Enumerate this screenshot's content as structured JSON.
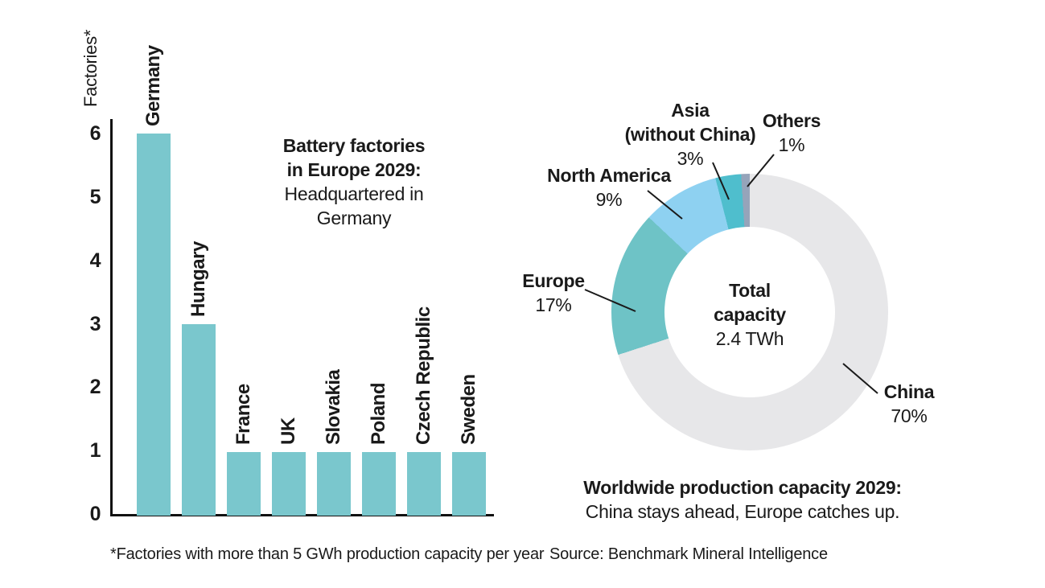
{
  "texts": {
    "bar_title_bold_1": "Battery factories",
    "bar_title_bold_2": "in Europe 2029:",
    "bar_title_reg_1": "Headquartered in",
    "bar_title_reg_2": "Germany",
    "y_axis_label": "Factories*",
    "donut_center_bold_1": "Total",
    "donut_center_bold_2": "capacity",
    "donut_center_value": "2.4 TWh",
    "donut_caption_bold": "Worldwide production capacity 2029:",
    "donut_caption_reg": "China stays ahead, Europe catches up.",
    "footnote": "*Factories with more than 5 GWh production capacity per year",
    "source": "Source: Benchmark Mineral Intelligence"
  },
  "donut_callouts": [
    {
      "lines": [
        "Asia",
        "(without China)"
      ],
      "pct": "3%"
    },
    {
      "lines": [
        "Others"
      ],
      "pct": "1%"
    },
    {
      "lines": [
        "North America"
      ],
      "pct": "9%"
    },
    {
      "lines": [
        "Europe"
      ],
      "pct": "17%"
    },
    {
      "lines": [
        "China"
      ],
      "pct": "70%"
    }
  ],
  "chart_data": [
    {
      "type": "bar",
      "title": "Battery factories in Europe 2029: Headquartered in Germany",
      "ylabel": "Factories*",
      "categories": [
        "Germany",
        "Hungary",
        "France",
        "UK",
        "Slovakia",
        "Poland",
        "Czech Republic",
        "Sweden"
      ],
      "values": [
        6,
        3,
        1,
        1,
        1,
        1,
        1,
        1
      ],
      "ylim": [
        0,
        6
      ],
      "yticks": [
        0,
        1,
        2,
        3,
        4,
        5,
        6
      ],
      "ytick_labels_top_to_bottom": [
        "6",
        "5",
        "4",
        "3",
        "2",
        "1",
        "0"
      ],
      "bar_color": "#7ac7cd",
      "grid": false,
      "footnote": "*Factories with more than 5 GWh production capacity per year"
    },
    {
      "type": "pie",
      "subtype": "donut",
      "title": "Worldwide production capacity 2029: China stays ahead, Europe catches up.",
      "center_text": "Total capacity 2.4 TWh",
      "total_capacity": "2.4 TWh",
      "start_angle_deg": 0,
      "direction": "clockwise",
      "segments": [
        {
          "label": "China",
          "pct": 70,
          "color": "#e7e7e9"
        },
        {
          "label": "Europe",
          "pct": 17,
          "color": "#6ec3c6"
        },
        {
          "label": "North America",
          "pct": 9,
          "color": "#8ed1f1"
        },
        {
          "label": "Asia (without China)",
          "pct": 3,
          "color": "#4fbecd"
        },
        {
          "label": "Others",
          "pct": 1,
          "color": "#96a4ba"
        }
      ],
      "source": "Source: Benchmark Mineral Intelligence"
    }
  ]
}
